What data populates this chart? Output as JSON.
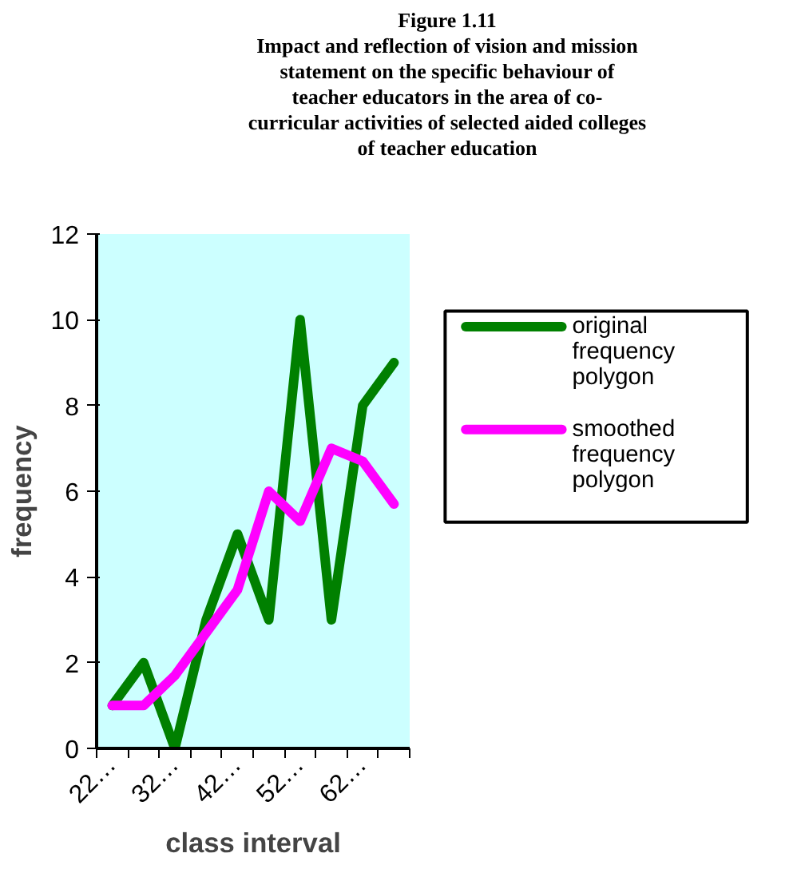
{
  "chart_data": {
    "type": "line",
    "title": "Figure 1.11",
    "subtitle": "Impact and reflection of vision and mission statement on the specific behaviour of  teacher educators  in the area of co-curricular activities  of selected aided colleges of teacher education",
    "xlabel": "class interval",
    "ylabel": "frequency",
    "categories": [
      "22…",
      null,
      "32…",
      null,
      "42…",
      null,
      "52…",
      null,
      "62…",
      null
    ],
    "series": [
      {
        "name": "original frequency polygon",
        "color": "#008000",
        "values": [
          1,
          2,
          0,
          3,
          5,
          3,
          10,
          3,
          8,
          9
        ]
      },
      {
        "name": "smoothed frequency polygon",
        "color": "#ff00ff",
        "values": [
          1,
          1,
          1.7,
          2.7,
          3.7,
          6,
          5.3,
          7,
          6.7,
          5.7
        ]
      }
    ],
    "ylim": [
      0,
      12
    ],
    "yticks": [
      0,
      2,
      4,
      6,
      8,
      10,
      12
    ],
    "grid": false,
    "legend": "right",
    "marker": "none",
    "line_style": "solid"
  }
}
